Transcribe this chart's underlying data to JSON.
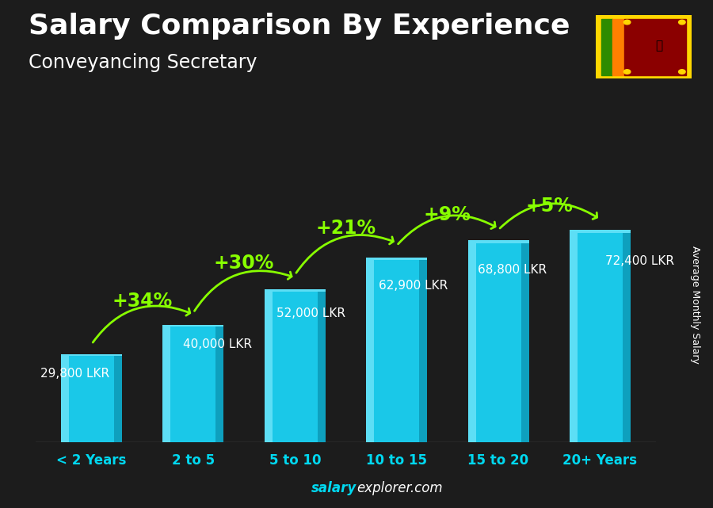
{
  "title": "Salary Comparison By Experience",
  "subtitle": "Conveyancing Secretary",
  "ylabel": "Average Monthly Salary",
  "footer_bold": "salary",
  "footer_regular": "explorer.com",
  "categories": [
    "< 2 Years",
    "2 to 5",
    "5 to 10",
    "10 to 15",
    "15 to 20",
    "20+ Years"
  ],
  "values": [
    29800,
    40000,
    52000,
    62900,
    68800,
    72400
  ],
  "labels": [
    "29,800 LKR",
    "40,000 LKR",
    "52,000 LKR",
    "62,900 LKR",
    "68,800 LKR",
    "72,400 LKR"
  ],
  "pct_labels": [
    "+34%",
    "+30%",
    "+21%",
    "+9%",
    "+5%"
  ],
  "bar_color_main": "#1AC8E8",
  "bar_color_left": "#5DDEF5",
  "bar_color_right": "#0EA0BE",
  "bg_color": "#1C1C1C",
  "title_color": "#FFFFFF",
  "subtitle_color": "#FFFFFF",
  "label_color": "#FFFFFF",
  "pct_color": "#88FF00",
  "xtick_color": "#00D8F0",
  "footer_bold_color": "#00D8F0",
  "footer_reg_color": "#FFFFFF",
  "ylim": [
    0,
    90000
  ],
  "title_fontsize": 26,
  "subtitle_fontsize": 17,
  "label_fontsize": 11,
  "pct_fontsize": 17,
  "xtick_fontsize": 12,
  "footer_fontsize": 12,
  "ylabel_fontsize": 9
}
